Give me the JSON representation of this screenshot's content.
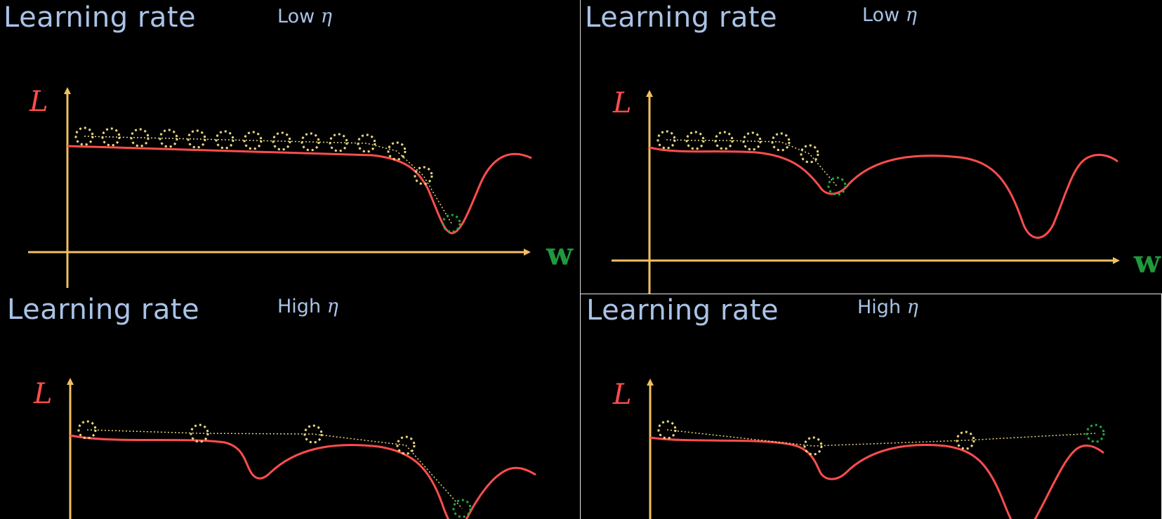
{
  "colors": {
    "background": "#000000",
    "title": "#a9c3e6",
    "axis": "#f0c060",
    "curve": "#ff4d4d",
    "step": "#e8d880",
    "final_step": "#22aa44",
    "w_label": "#1f9a3c"
  },
  "panels": [
    {
      "title": "Learning rate",
      "subtitle_text": "Low",
      "subtitle_symbol": "η",
      "y_label": "L",
      "x_label": "w"
    },
    {
      "title": "Learning rate",
      "subtitle_text": "Low",
      "subtitle_symbol": "η",
      "y_label": "L",
      "x_label": "w"
    },
    {
      "title": "Learning rate",
      "subtitle_text": "High",
      "subtitle_symbol": "η",
      "y_label": "L"
    },
    {
      "title": "Learning rate",
      "subtitle_text": "High",
      "subtitle_symbol": "η",
      "y_label": "L"
    }
  ]
}
